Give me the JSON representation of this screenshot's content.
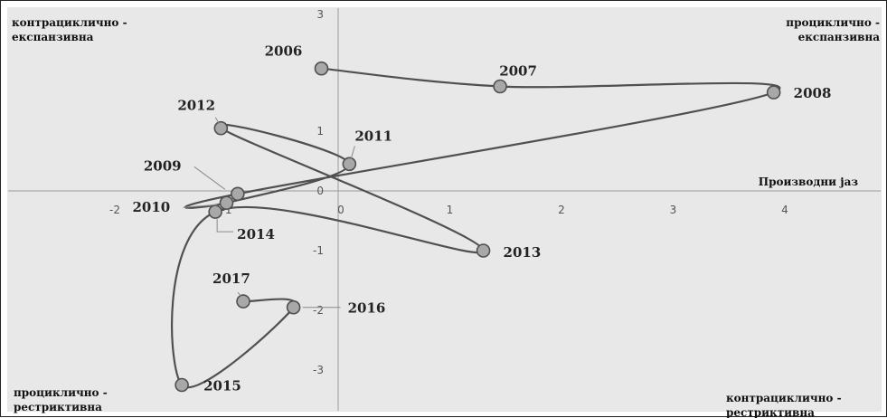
{
  "chart_data": {
    "type": "scatter",
    "title": "",
    "xlabel": "Производни јаз",
    "ylabel": "",
    "xlim": [
      -3,
      5
    ],
    "ylim": [
      -3.5,
      3
    ],
    "grid": false,
    "x_ticks": [
      "-2",
      "-1",
      "0",
      "1",
      "2",
      "3",
      "4"
    ],
    "x_tick_values": [
      -2,
      -1,
      0,
      1,
      2,
      3,
      4
    ],
    "y_ticks": [
      "3",
      "1",
      "0",
      "-1",
      "-2",
      "-3"
    ],
    "y_tick_values": [
      3,
      1,
      0,
      -1,
      -2,
      -3
    ],
    "quadrant_labels": {
      "top_left": [
        "контрациклично -",
        "експанзивна"
      ],
      "top_right": [
        "проциклично -",
        "експанзивна"
      ],
      "bottom_left": [
        "проциклично -",
        "рестриктивна"
      ],
      "bottom_right": [
        "контрациклично -",
        "рестриктивна"
      ]
    },
    "series": [
      {
        "connected": true,
        "points": [
          {
            "label": "2006",
            "x": -0.15,
            "y": 2.05
          },
          {
            "label": "2007",
            "x": 1.45,
            "y": 1.75
          },
          {
            "label": "2008",
            "x": 3.9,
            "y": 1.65
          },
          {
            "label": "2009",
            "x": -0.9,
            "y": -0.05
          },
          {
            "label": "2010",
            "x": -1.0,
            "y": -0.2
          },
          {
            "label": "2011",
            "x": 0.1,
            "y": 0.45
          },
          {
            "label": "2012",
            "x": -1.05,
            "y": 1.05
          },
          {
            "label": "2013",
            "x": 1.3,
            "y": -1.0
          },
          {
            "label": "2014",
            "x": -1.1,
            "y": -0.35
          },
          {
            "label": "2015",
            "x": -1.4,
            "y": -3.25
          },
          {
            "label": "2016",
            "x": -0.4,
            "y": -1.95
          },
          {
            "label": "2017",
            "x": -0.85,
            "y": -1.85
          }
        ]
      }
    ]
  }
}
